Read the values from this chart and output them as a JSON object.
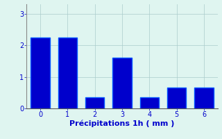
{
  "categories": [
    0,
    1,
    2,
    3,
    4,
    5,
    6
  ],
  "values": [
    2.25,
    2.25,
    0.35,
    1.6,
    0.35,
    0.65,
    0.65
  ],
  "bar_color": "#0000cc",
  "bar_edge_color": "#0055ff",
  "xlabel": "Précipitations 1h ( mm )",
  "ylim": [
    0,
    3.3
  ],
  "yticks": [
    0,
    1,
    2,
    3
  ],
  "xticks": [
    0,
    1,
    2,
    3,
    4,
    5,
    6
  ],
  "background_color": "#dff5f0",
  "grid_color": "#aacccc",
  "xlabel_fontsize": 8,
  "tick_fontsize": 7,
  "tick_color": "#0000cc",
  "label_color": "#0000cc",
  "bar_width": 0.7
}
